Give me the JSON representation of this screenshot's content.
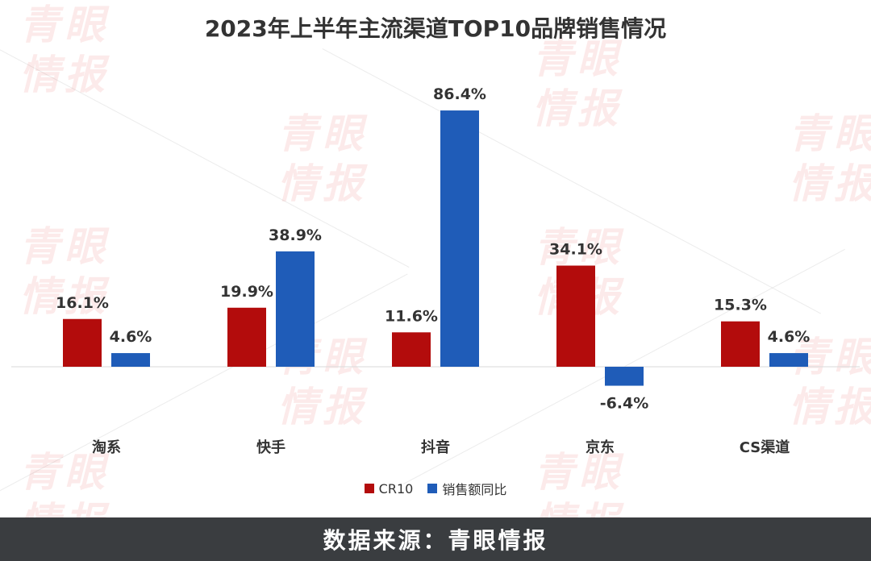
{
  "watermark_text": "青眼情报",
  "chart_data": {
    "type": "bar",
    "title": "2023年上半年主流渠道TOP10品牌销售情况",
    "categories": [
      "淘系",
      "快手",
      "抖音",
      "京东",
      "CS渠道"
    ],
    "series": [
      {
        "name": "CR10",
        "color": "#b30c0c",
        "values": [
          16.1,
          19.9,
          11.6,
          34.1,
          15.3
        ],
        "labels": [
          "16.1%",
          "19.9%",
          "11.6%",
          "34.1%",
          "15.3%"
        ]
      },
      {
        "name": "销售额同比",
        "color": "#1f5cb8",
        "values": [
          4.6,
          38.9,
          86.4,
          -6.4,
          4.6
        ],
        "labels": [
          "4.6%",
          "38.9%",
          "86.4%",
          "-6.4%",
          "4.6%"
        ]
      }
    ],
    "ylim": [
      -10,
      90
    ],
    "grid": false,
    "legend": "bottom"
  },
  "footer": {
    "source_text": "数据来源：青眼情报"
  }
}
